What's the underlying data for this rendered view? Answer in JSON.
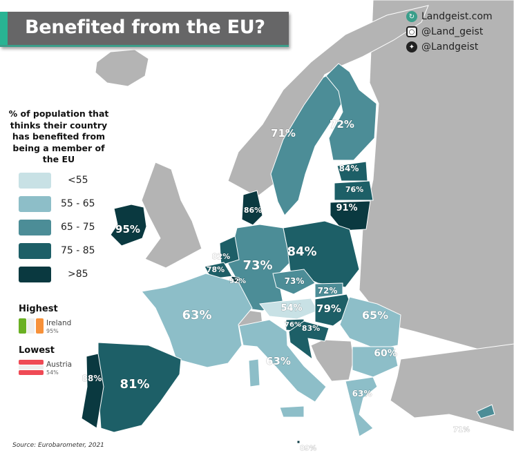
{
  "header": {
    "title": "Benefited from the EU?"
  },
  "social": [
    {
      "icon": "globe-icon",
      "text": "Landgeist.com"
    },
    {
      "icon": "instagram-icon",
      "text": "@Land_geist"
    },
    {
      "icon": "twitter-icon",
      "text": "@Landgeist"
    }
  ],
  "legend": {
    "title": "% of population that thinks their country has benefited from being a member of the EU",
    "bins": [
      {
        "label": "<55",
        "color": "#c8e1e5"
      },
      {
        "label": "55 - 65",
        "color": "#8dbec8"
      },
      {
        "label": "65 - 75",
        "color": "#4c8d97"
      },
      {
        "label": "75 - 85",
        "color": "#1d5f67"
      },
      {
        "label": ">85",
        "color": "#0a3940"
      }
    ]
  },
  "highest": {
    "heading": "Highest",
    "country": "Ireland",
    "value": "95%"
  },
  "lowest": {
    "heading": "Lowest",
    "country": "Austria",
    "value": "54%"
  },
  "source": "Source: Eurobarometer, 2021",
  "colors": {
    "non_eu": "#b4b4b4",
    "sea": "#ffffff",
    "border": "#ffffff"
  },
  "regions": [
    {
      "id": "ireland",
      "value": "95%",
      "bin": 4
    },
    {
      "id": "sweden",
      "value": "71%",
      "bin": 2
    },
    {
      "id": "finland",
      "value": "72%",
      "bin": 2
    },
    {
      "id": "estonia",
      "value": "84%",
      "bin": 3
    },
    {
      "id": "latvia",
      "value": "76%",
      "bin": 3
    },
    {
      "id": "lithuania",
      "value": "91%",
      "bin": 4
    },
    {
      "id": "denmark",
      "value": "86%",
      "bin": 4
    },
    {
      "id": "germany",
      "value": "73%",
      "bin": 2
    },
    {
      "id": "poland",
      "value": "84%",
      "bin": 3
    },
    {
      "id": "netherlands",
      "value": "82%",
      "bin": 3
    },
    {
      "id": "belgium",
      "value": "78%",
      "bin": 3
    },
    {
      "id": "luxembourg",
      "value": "92%",
      "bin": 4
    },
    {
      "id": "france",
      "value": "63%",
      "bin": 1
    },
    {
      "id": "czechia",
      "value": "73%",
      "bin": 2
    },
    {
      "id": "slovakia",
      "value": "72%",
      "bin": 2
    },
    {
      "id": "austria",
      "value": "54%",
      "bin": 0
    },
    {
      "id": "hungary",
      "value": "79%",
      "bin": 3
    },
    {
      "id": "slovenia",
      "value": "76%",
      "bin": 3
    },
    {
      "id": "croatia",
      "value": "83%",
      "bin": 3
    },
    {
      "id": "romania",
      "value": "65%",
      "bin": 1
    },
    {
      "id": "bulgaria",
      "value": "60%",
      "bin": 1
    },
    {
      "id": "greece",
      "value": "63%",
      "bin": 1
    },
    {
      "id": "italy",
      "value": "63%",
      "bin": 1
    },
    {
      "id": "spain",
      "value": "81%",
      "bin": 3
    },
    {
      "id": "portugal",
      "value": "88%",
      "bin": 4
    },
    {
      "id": "cyprus",
      "value": "71%",
      "bin": 2
    },
    {
      "id": "malta",
      "value": "89%",
      "bin": 4
    }
  ]
}
